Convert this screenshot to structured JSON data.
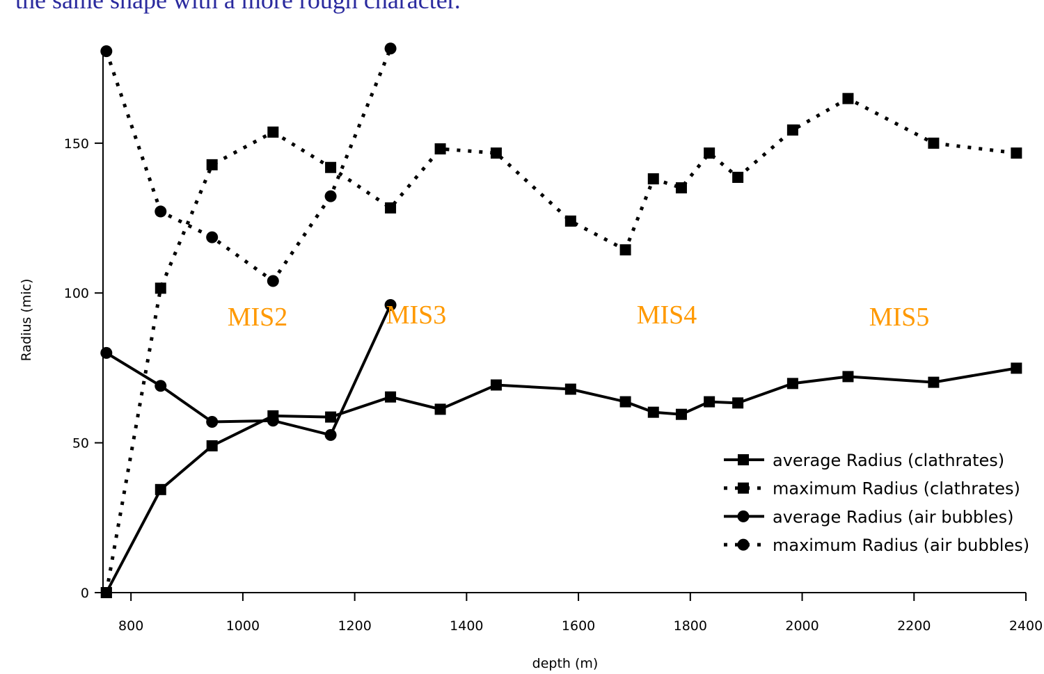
{
  "slide_text": "the same shape with a more rough character.",
  "chart_data": {
    "type": "line",
    "xlabel": "depth (m)",
    "ylabel": "Radius (mic)",
    "x": [
      756,
      853,
      945,
      1054,
      1157,
      1264,
      1353,
      1453,
      1586,
      1684,
      1734,
      1784,
      1834,
      1885,
      1983,
      2082,
      2235,
      2383
    ],
    "series": [
      {
        "name": "average Radius (clathrates)",
        "color": "#000000",
        "line_style": "solid",
        "marker": "square",
        "values": [
          0,
          34.4,
          49,
          59,
          58.6,
          65.3,
          61.2,
          69.3,
          67.9,
          63.7,
          60.2,
          59.5,
          63.7,
          63.3,
          69.8,
          72.1,
          70.2,
          74.9
        ]
      },
      {
        "name": "maximum Radius (clathrates)",
        "color": "#000000",
        "line_style": "dotted",
        "marker": "square",
        "values": [
          0,
          101.6,
          142.8,
          153.7,
          141.9,
          128.4,
          148.1,
          146.7,
          124,
          114.4,
          138.1,
          135.1,
          146.7,
          138.6,
          154.4,
          164.9,
          150,
          146.7
        ]
      },
      {
        "name": "average Radius (air bubbles)",
        "color": "#000000",
        "line_style": "solid",
        "marker": "circle",
        "values": [
          80,
          69,
          57,
          57.4,
          52.6,
          96,
          null,
          null,
          null,
          null,
          null,
          null,
          null,
          null,
          null,
          null,
          null,
          null
        ]
      },
      {
        "name": "maximum Radius (air bubbles)",
        "color": "#000000",
        "line_style": "dotted",
        "marker": "circle",
        "values": [
          180.7,
          127.2,
          118.6,
          104,
          132.3,
          181.6,
          null,
          null,
          null,
          null,
          null,
          null,
          null,
          null,
          null,
          null,
          null,
          null
        ]
      }
    ],
    "annotations": [
      "MIS2",
      "MIS3",
      "MIS4",
      "MIS5"
    ],
    "xlim": [
      750,
      2400
    ],
    "xticks": [
      800,
      1000,
      1200,
      1400,
      1600,
      1800,
      2000,
      2200,
      2400
    ],
    "ylim": [
      0,
      182
    ],
    "yticks": [
      0,
      50,
      100,
      150
    ],
    "legend": "lower right"
  }
}
